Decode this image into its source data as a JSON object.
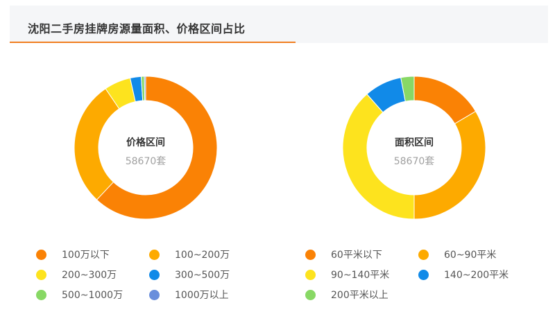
{
  "header": {
    "title": "沈阳二手房挂牌房源量面积、价格区间占比"
  },
  "colors": {
    "accent_line": "#f07d1f"
  },
  "chart_data": [
    {
      "type": "pie",
      "center_title": "价格区间",
      "center_sub": "58670套",
      "legend_position": "bottom",
      "series": [
        {
          "name": "100万以下",
          "value": 62.0,
          "color": "#fa8205"
        },
        {
          "name": "100~200万",
          "value": 28.5,
          "color": "#fdaa00"
        },
        {
          "name": "200~300万",
          "value": 6.0,
          "color": "#fde31e"
        },
        {
          "name": "300~500万",
          "value": 2.5,
          "color": "#118ae8"
        },
        {
          "name": "500~1000万",
          "value": 0.7,
          "color": "#88d865"
        },
        {
          "name": "1000万以上",
          "value": 0.3,
          "color": "#6a8fdc"
        }
      ]
    },
    {
      "type": "pie",
      "center_title": "面积区间",
      "center_sub": "58670套",
      "legend_position": "bottom",
      "series": [
        {
          "name": "60平米以下",
          "value": 16.5,
          "color": "#fa8205"
        },
        {
          "name": "60~90平米",
          "value": 33.5,
          "color": "#fdaa00"
        },
        {
          "name": "90~140平米",
          "value": 38.5,
          "color": "#fde31e"
        },
        {
          "name": "140~200平米",
          "value": 8.5,
          "color": "#118ae8"
        },
        {
          "name": "200平米以上",
          "value": 3.0,
          "color": "#88d865"
        }
      ]
    }
  ]
}
